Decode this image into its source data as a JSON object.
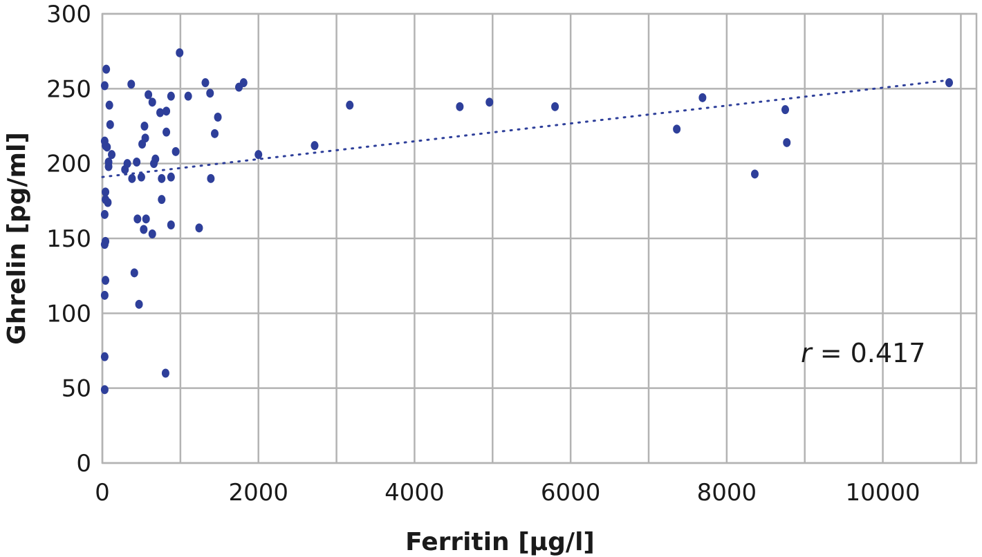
{
  "chart_data": {
    "type": "scatter",
    "title": "",
    "xlabel": "Ferritin [µg/l]",
    "ylabel": "Ghrelin [pg/ml]",
    "xlim": [
      0,
      11200
    ],
    "ylim": [
      0,
      300
    ],
    "xticks": [
      0,
      2000,
      4000,
      6000,
      8000,
      10000
    ],
    "yticks": [
      0,
      50,
      100,
      150,
      200,
      250,
      300
    ],
    "grid": true,
    "annotation": {
      "r_symbol": "r",
      "text": " = 0.417"
    },
    "trendline": {
      "style": "dotted",
      "x0": 0,
      "y0": 191,
      "x1": 10900,
      "y1": 256
    },
    "marker_color": "#2e3f9a",
    "points": [
      {
        "x": 30,
        "y": 49
      },
      {
        "x": 30,
        "y": 71
      },
      {
        "x": 30,
        "y": 112
      },
      {
        "x": 40,
        "y": 122
      },
      {
        "x": 30,
        "y": 146
      },
      {
        "x": 40,
        "y": 148
      },
      {
        "x": 30,
        "y": 166
      },
      {
        "x": 40,
        "y": 176
      },
      {
        "x": 40,
        "y": 181
      },
      {
        "x": 70,
        "y": 174
      },
      {
        "x": 80,
        "y": 198
      },
      {
        "x": 80,
        "y": 201
      },
      {
        "x": 40,
        "y": 212
      },
      {
        "x": 60,
        "y": 211
      },
      {
        "x": 30,
        "y": 215
      },
      {
        "x": 30,
        "y": 252
      },
      {
        "x": 50,
        "y": 263
      },
      {
        "x": 90,
        "y": 239
      },
      {
        "x": 100,
        "y": 226
      },
      {
        "x": 120,
        "y": 206
      },
      {
        "x": 290,
        "y": 196
      },
      {
        "x": 320,
        "y": 200
      },
      {
        "x": 370,
        "y": 253
      },
      {
        "x": 380,
        "y": 190
      },
      {
        "x": 410,
        "y": 127
      },
      {
        "x": 440,
        "y": 201
      },
      {
        "x": 450,
        "y": 163
      },
      {
        "x": 470,
        "y": 106
      },
      {
        "x": 500,
        "y": 191
      },
      {
        "x": 510,
        "y": 213
      },
      {
        "x": 530,
        "y": 156
      },
      {
        "x": 540,
        "y": 225
      },
      {
        "x": 550,
        "y": 217
      },
      {
        "x": 560,
        "y": 163
      },
      {
        "x": 590,
        "y": 246
      },
      {
        "x": 640,
        "y": 153
      },
      {
        "x": 640,
        "y": 241
      },
      {
        "x": 660,
        "y": 200
      },
      {
        "x": 680,
        "y": 203
      },
      {
        "x": 740,
        "y": 234
      },
      {
        "x": 760,
        "y": 190
      },
      {
        "x": 760,
        "y": 176
      },
      {
        "x": 820,
        "y": 221
      },
      {
        "x": 820,
        "y": 235
      },
      {
        "x": 810,
        "y": 60
      },
      {
        "x": 880,
        "y": 159
      },
      {
        "x": 880,
        "y": 191
      },
      {
        "x": 880,
        "y": 245
      },
      {
        "x": 940,
        "y": 208
      },
      {
        "x": 990,
        "y": 274
      },
      {
        "x": 1100,
        "y": 245
      },
      {
        "x": 1240,
        "y": 157
      },
      {
        "x": 1320,
        "y": 254
      },
      {
        "x": 1380,
        "y": 247
      },
      {
        "x": 1390,
        "y": 190
      },
      {
        "x": 1440,
        "y": 220
      },
      {
        "x": 1480,
        "y": 231
      },
      {
        "x": 1750,
        "y": 251
      },
      {
        "x": 1810,
        "y": 254
      },
      {
        "x": 2000,
        "y": 206
      },
      {
        "x": 2720,
        "y": 212
      },
      {
        "x": 3170,
        "y": 239
      },
      {
        "x": 4580,
        "y": 238
      },
      {
        "x": 4960,
        "y": 241
      },
      {
        "x": 5800,
        "y": 238
      },
      {
        "x": 7360,
        "y": 223
      },
      {
        "x": 7690,
        "y": 244
      },
      {
        "x": 8360,
        "y": 193
      },
      {
        "x": 8750,
        "y": 236
      },
      {
        "x": 8770,
        "y": 214
      },
      {
        "x": 10850,
        "y": 254
      }
    ]
  }
}
